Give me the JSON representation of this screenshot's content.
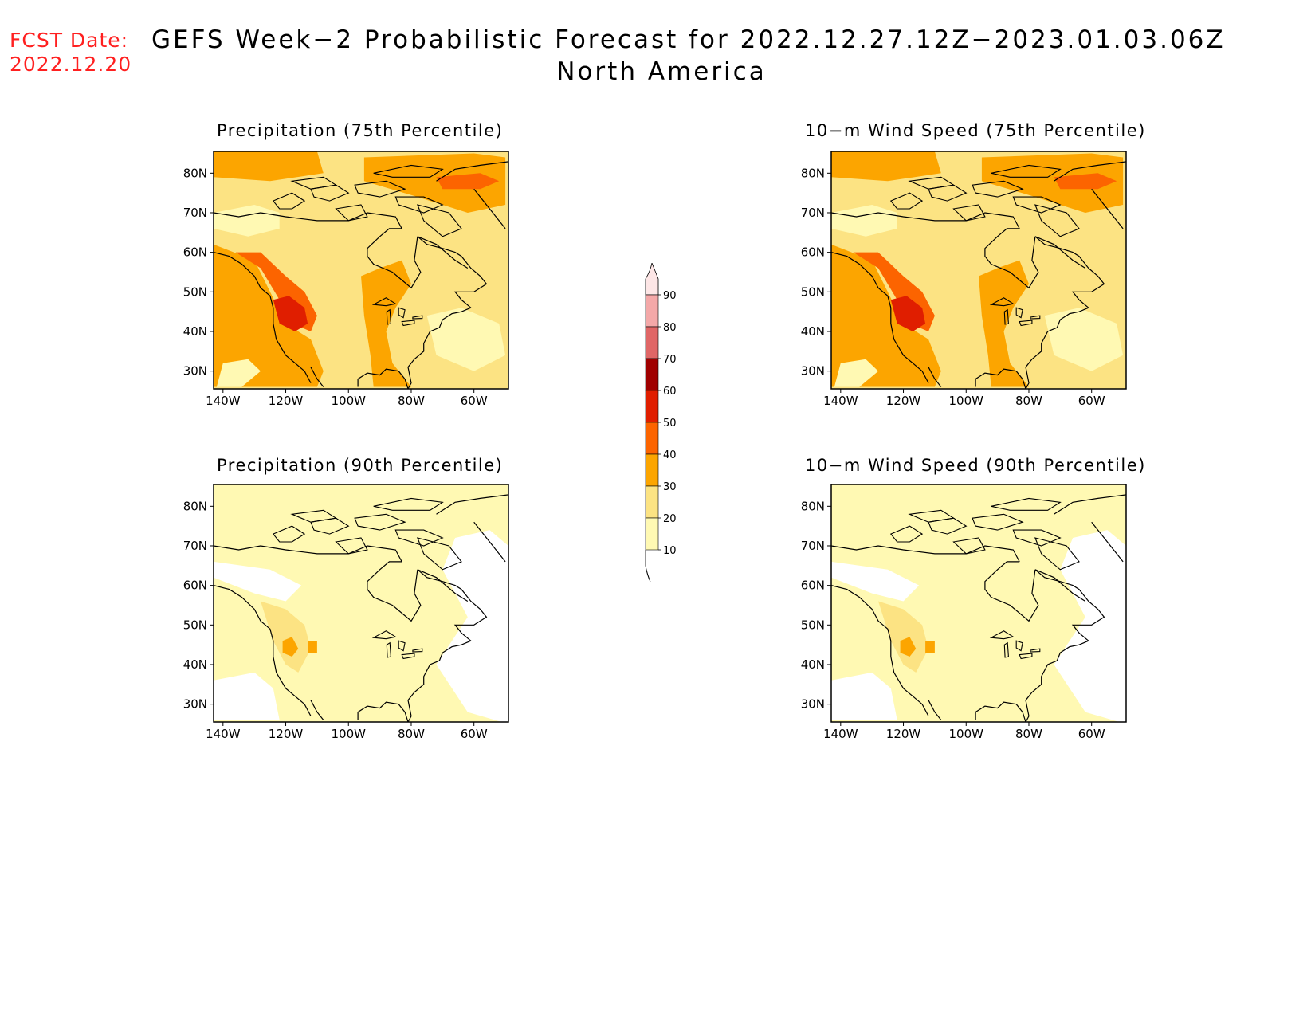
{
  "forecast_date": {
    "label": "FCST Date:",
    "value": "2022.12.20"
  },
  "title": {
    "line1": "GEFS Week−2 Probabilistic Forecast for 2022.12.27.12Z−2023.01.03.06Z",
    "line2": "North America"
  },
  "colors": {
    "scale": [
      "#fff9b3",
      "#fce383",
      "#fca500",
      "#fc6400",
      "#e01e00",
      "#a00000",
      "#e06666",
      "#f4a8a8",
      "#fde6e6"
    ],
    "fcst_date": "#ff2020",
    "coastline": "#000000"
  },
  "colorbar": {
    "levels": [
      "10",
      "20",
      "30",
      "40",
      "50",
      "60",
      "70",
      "80",
      "90"
    ]
  },
  "panels": [
    {
      "id": "precip-75",
      "title": "Precipitation (75th Percentile)",
      "lat_labels": [
        "80N",
        "70N",
        "60N",
        "50N",
        "40N",
        "30N"
      ],
      "lon_labels": [
        "140W",
        "120W",
        "100W",
        "80W",
        "60W"
      ],
      "shading": "heavy"
    },
    {
      "id": "wind-75",
      "title": "10−m Wind Speed (75th Percentile)",
      "lat_labels": [
        "80N",
        "70N",
        "60N",
        "50N",
        "40N",
        "30N"
      ],
      "lon_labels": [
        "140W",
        "120W",
        "100W",
        "80W",
        "60W"
      ],
      "shading": "heavy"
    },
    {
      "id": "precip-90",
      "title": "Precipitation (90th Percentile)",
      "lat_labels": [
        "80N",
        "70N",
        "60N",
        "50N",
        "40N",
        "30N"
      ],
      "lon_labels": [
        "140W",
        "120W",
        "100W",
        "80W",
        "60W"
      ],
      "shading": "light"
    },
    {
      "id": "wind-90",
      "title": "10−m Wind Speed (90th Percentile)",
      "lat_labels": [
        "80N",
        "70N",
        "60N",
        "50N",
        "40N",
        "30N"
      ],
      "lon_labels": [
        "140W",
        "120W",
        "100W",
        "80W",
        "60W"
      ],
      "shading": "light"
    }
  ]
}
